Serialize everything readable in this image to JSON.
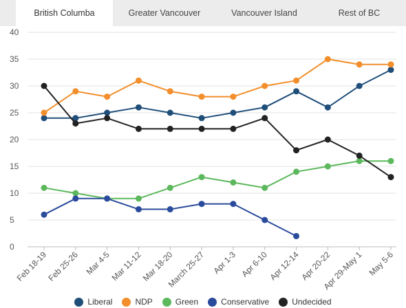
{
  "tabs": [
    {
      "label": "British Columba",
      "active": true
    },
    {
      "label": "Greater Vancouver",
      "active": false
    },
    {
      "label": "Vancouver Island",
      "active": false
    },
    {
      "label": "Rest of BC",
      "active": false
    }
  ],
  "chart_data": {
    "type": "line",
    "title": "",
    "xlabel": "",
    "ylabel": "",
    "ylim": [
      0,
      40
    ],
    "yticks": [
      0,
      5,
      10,
      15,
      20,
      25,
      30,
      35,
      40
    ],
    "categories": [
      "Feb 18-19",
      "Feb 25-26",
      "Mar 4-5",
      "Mar 11-12",
      "Mar 18-20",
      "March 25-27",
      "Apr 1-3",
      "Apr 6-10",
      "Apr 12-14",
      "Apr 20-22",
      "Apr 29-May 1",
      "May 5-6"
    ],
    "grid": "horizontal",
    "legend_position": "bottom",
    "series": [
      {
        "name": "Liberal",
        "color": "#1f4e79",
        "values": [
          24,
          24,
          25,
          26,
          25,
          24,
          25,
          26,
          29,
          26,
          30,
          33
        ]
      },
      {
        "name": "NDP",
        "color": "#f28e2b",
        "values": [
          25,
          29,
          28,
          31,
          29,
          28,
          28,
          30,
          31,
          35,
          34,
          34
        ]
      },
      {
        "name": "Green",
        "color": "#5cb85c",
        "values": [
          11,
          10,
          9,
          9,
          11,
          13,
          12,
          11,
          14,
          15,
          16,
          16
        ]
      },
      {
        "name": "Conservative",
        "color": "#2a4b9b",
        "values": [
          6,
          9,
          9,
          7,
          7,
          8,
          8,
          5,
          2,
          null,
          null,
          null
        ]
      },
      {
        "name": "Undecided",
        "color": "#222222",
        "values": [
          30,
          23,
          24,
          22,
          22,
          22,
          22,
          24,
          18,
          20,
          17,
          13
        ]
      }
    ]
  }
}
